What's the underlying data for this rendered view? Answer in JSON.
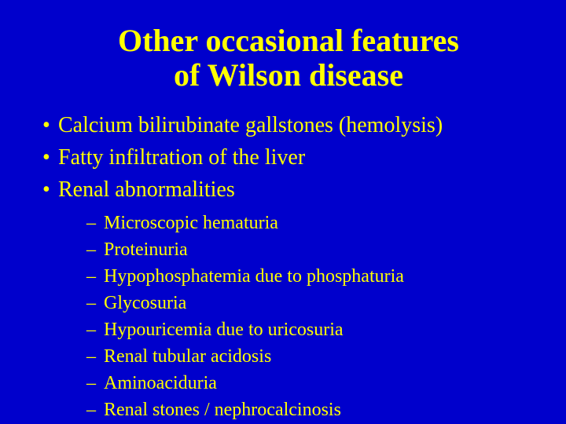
{
  "colors": {
    "background": "#0000cc",
    "text": "#ffff00",
    "title": "#ffff00"
  },
  "typography": {
    "font_family": "Times New Roman",
    "title_fontsize": 40,
    "title_weight": "bold",
    "level1_fontsize": 28,
    "level2_fontsize": 24
  },
  "title_line1": "Other occasional features",
  "title_line2": "of Wilson disease",
  "bullets": [
    "Calcium bilirubinate gallstones (hemolysis)",
    "Fatty infiltration of the liver",
    "Renal abnormalities"
  ],
  "sub_bullets": [
    "Microscopic hematuria",
    "Proteinuria",
    "Hypophosphatemia due to phosphaturia",
    "Glycosuria",
    "Hypouricemia due to uricosuria",
    "Renal tubular acidosis",
    "Aminoaciduria",
    "Renal stones / nephrocalcinosis"
  ]
}
